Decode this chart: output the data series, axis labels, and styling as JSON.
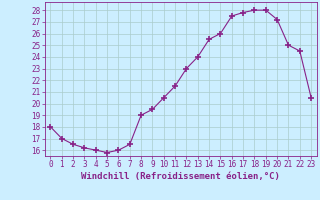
{
  "x": [
    0,
    1,
    2,
    3,
    4,
    5,
    6,
    7,
    8,
    9,
    10,
    11,
    12,
    13,
    14,
    15,
    16,
    17,
    18,
    19,
    20,
    21,
    22,
    23
  ],
  "y": [
    18,
    17,
    16.5,
    16.2,
    16,
    15.8,
    16,
    16.5,
    19.0,
    19.5,
    20.5,
    21.5,
    23.0,
    24.0,
    25.5,
    26.0,
    27.5,
    27.8,
    28.0,
    28.0,
    27.2,
    25.0,
    24.5,
    20.5
  ],
  "line_color": "#882288",
  "marker": "+",
  "marker_size": 4,
  "marker_lw": 1.2,
  "bg_color": "#cceeff",
  "grid_color": "#aacccc",
  "xlabel": "Windchill (Refroidissement éolien,°C)",
  "ylabel": "",
  "xlim": [
    -0.5,
    23.5
  ],
  "ylim": [
    15.5,
    28.7
  ],
  "yticks": [
    16,
    17,
    18,
    19,
    20,
    21,
    22,
    23,
    24,
    25,
    26,
    27,
    28
  ],
  "xticks": [
    0,
    1,
    2,
    3,
    4,
    5,
    6,
    7,
    8,
    9,
    10,
    11,
    12,
    13,
    14,
    15,
    16,
    17,
    18,
    19,
    20,
    21,
    22,
    23
  ],
  "tick_label_fontsize": 5.5,
  "xlabel_fontsize": 6.5,
  "tick_color": "#882288",
  "axis_label_color": "#882288",
  "spine_color": "#882288",
  "linewidth": 0.8
}
